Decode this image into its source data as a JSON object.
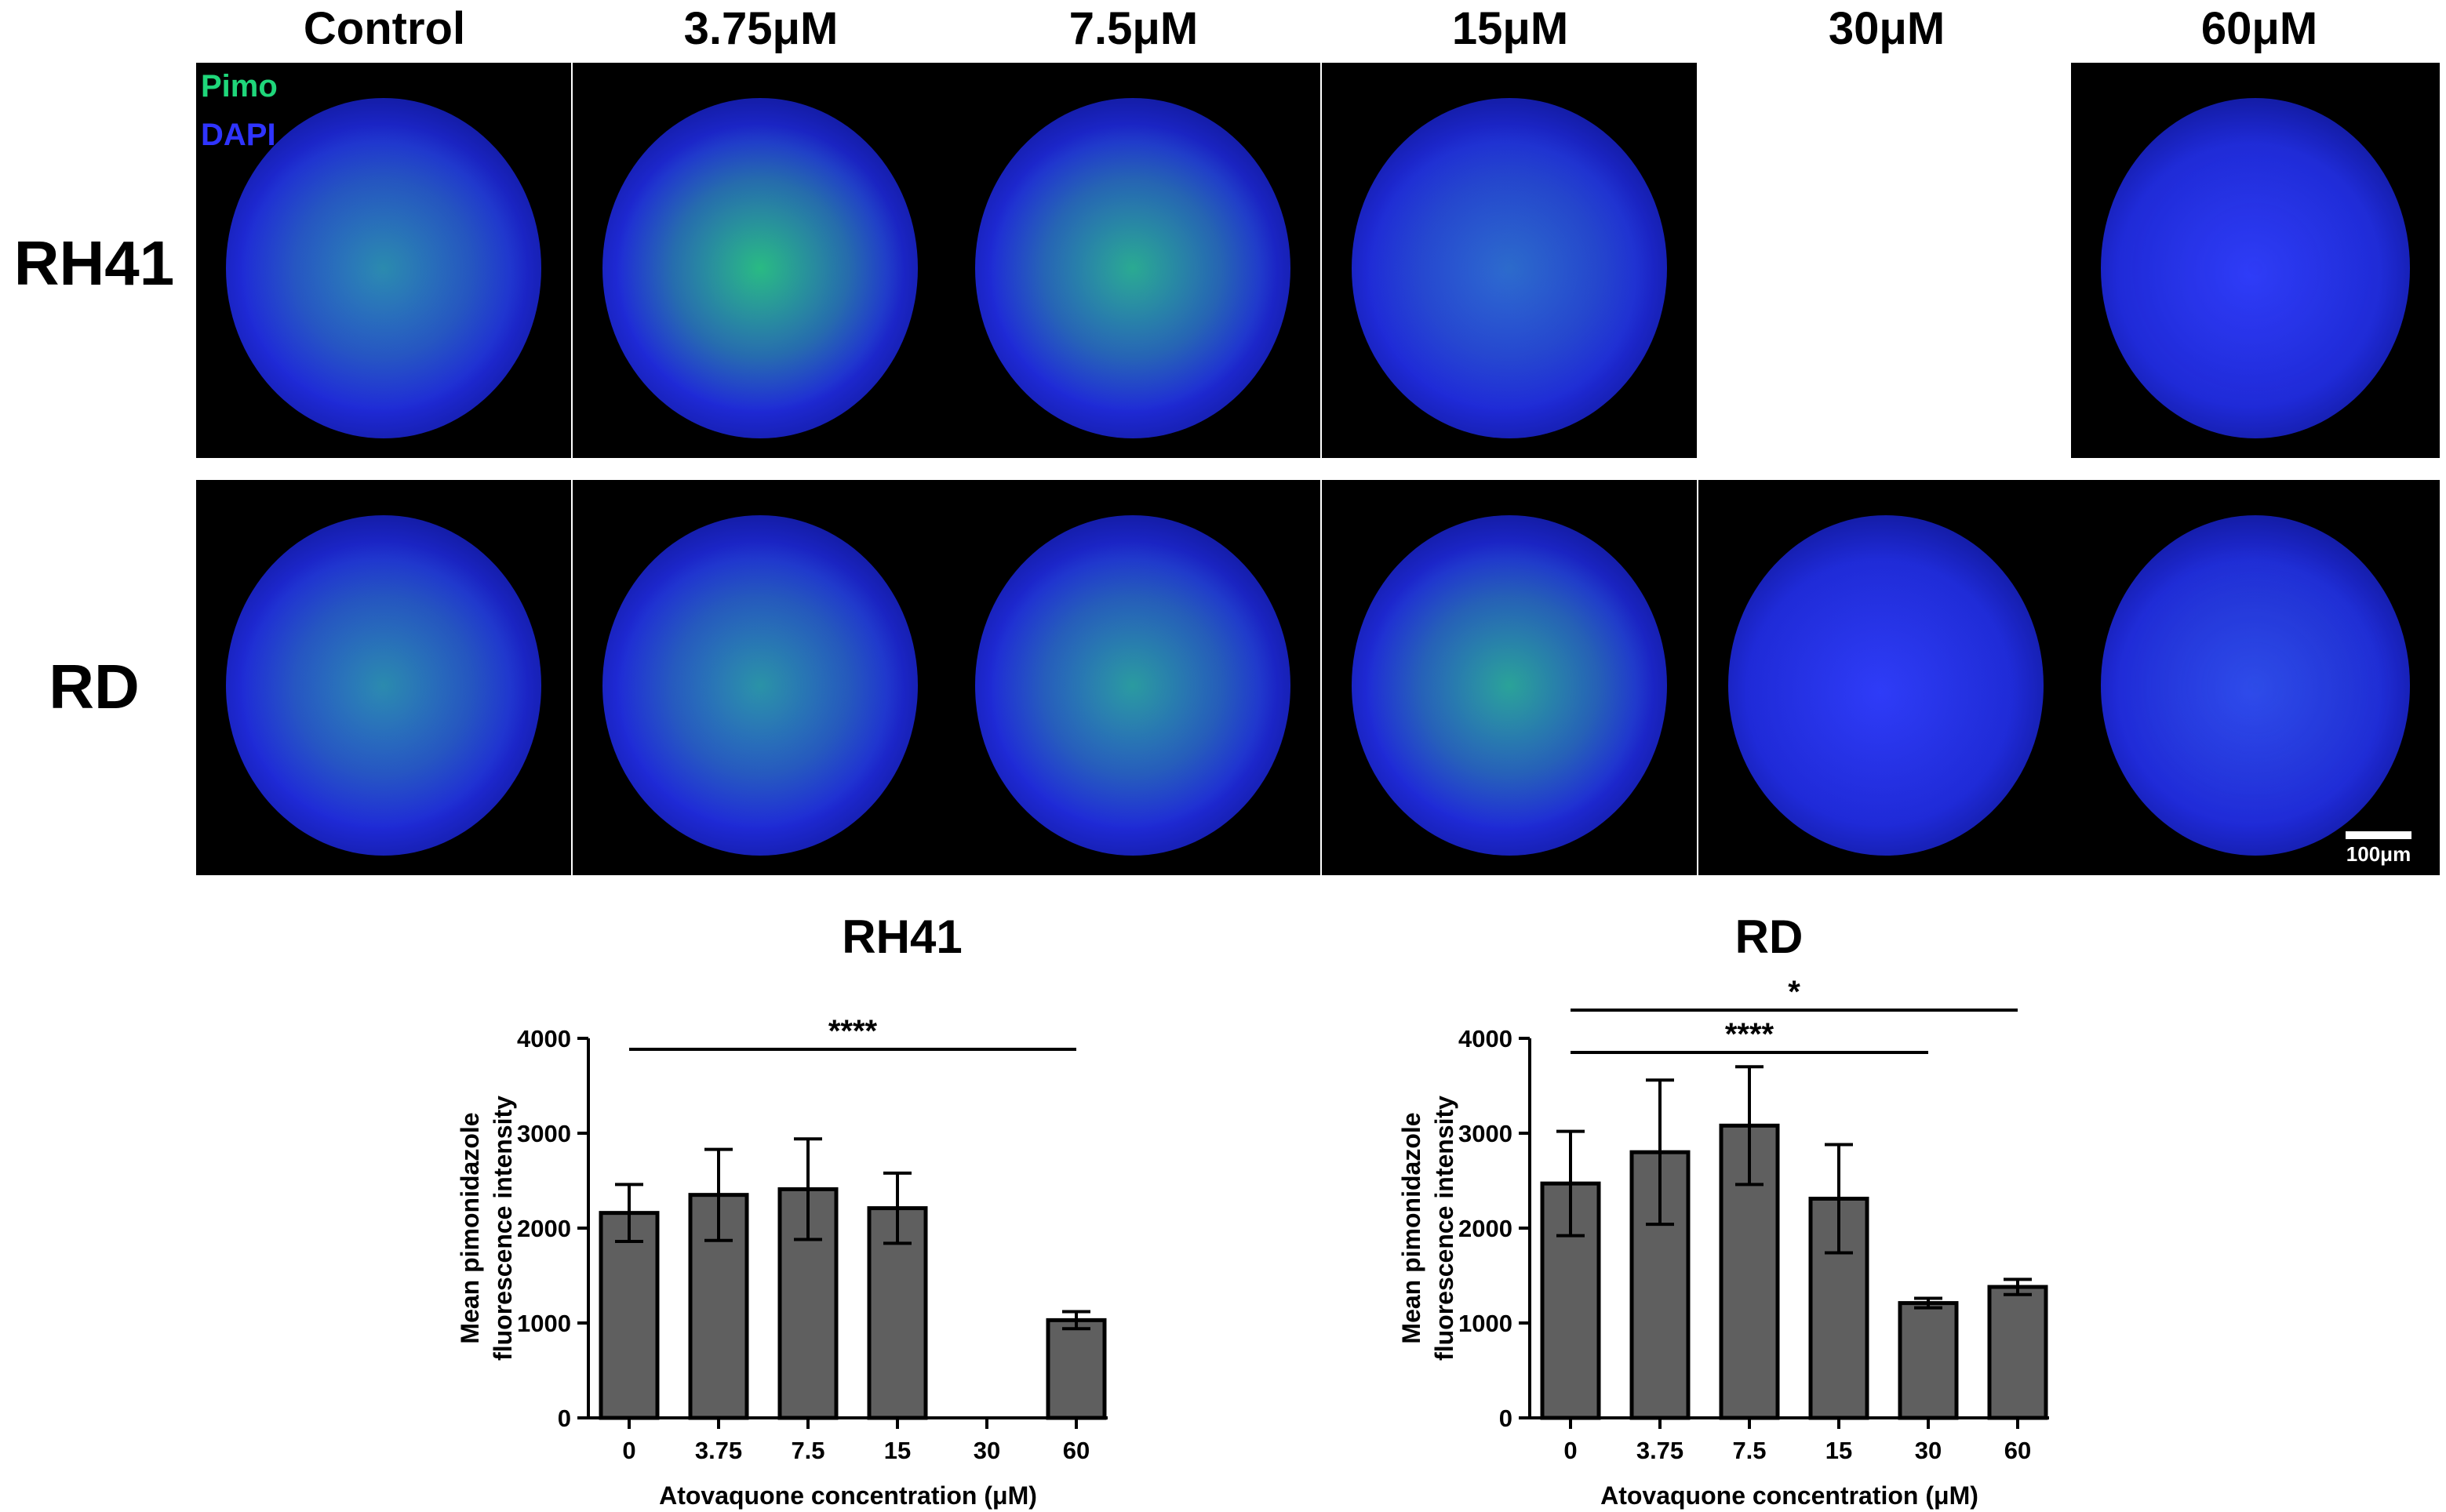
{
  "micrograph": {
    "columns": [
      "Control",
      "3.75μM",
      "7.5μM",
      "15μM",
      "30μM",
      "60μM"
    ],
    "rows": [
      "RH41",
      "RD"
    ],
    "legend": {
      "pimo": "Pimo",
      "dapi": "DAPI"
    },
    "colors": {
      "pimo": "#1fd67a",
      "dapi": "#2f34ff",
      "background": "#000000"
    },
    "scale_bar_label": "100μm",
    "rh41_30uM_panel": "empty"
  },
  "chart_data": [
    {
      "type": "bar",
      "title": "RH41",
      "categories": [
        "0",
        "3.75",
        "7.5",
        "15",
        "30",
        "60"
      ],
      "values": [
        2160,
        2350,
        2410,
        2210,
        null,
        1030
      ],
      "error": [
        300,
        480,
        530,
        370,
        null,
        90
      ],
      "xlabel": "Atovaquone concentration (μM)",
      "ylabel": "Mean pimonidazole fluorescence intensity",
      "ylim": [
        0,
        4000
      ],
      "yticks": [
        0,
        1000,
        2000,
        3000,
        4000
      ],
      "bar_color": "#5f5f5f",
      "significance": [
        {
          "from": "0",
          "to": "60",
          "label": "****"
        }
      ]
    },
    {
      "type": "bar",
      "title": "RD",
      "categories": [
        "0",
        "3.75",
        "7.5",
        "15",
        "30",
        "60"
      ],
      "values": [
        2470,
        2800,
        3080,
        2310,
        1210,
        1380
      ],
      "error": [
        550,
        760,
        620,
        570,
        50,
        80
      ],
      "xlabel": "Atovaquone concentration (μM)",
      "ylabel": "Mean pimonidazole fluorescence intensity",
      "ylim": [
        0,
        4000
      ],
      "yticks": [
        0,
        1000,
        2000,
        3000,
        4000
      ],
      "bar_color": "#5f5f5f",
      "significance": [
        {
          "from": "0",
          "to": "60",
          "label": "*"
        },
        {
          "from": "0",
          "to": "30",
          "label": "****"
        }
      ]
    }
  ]
}
